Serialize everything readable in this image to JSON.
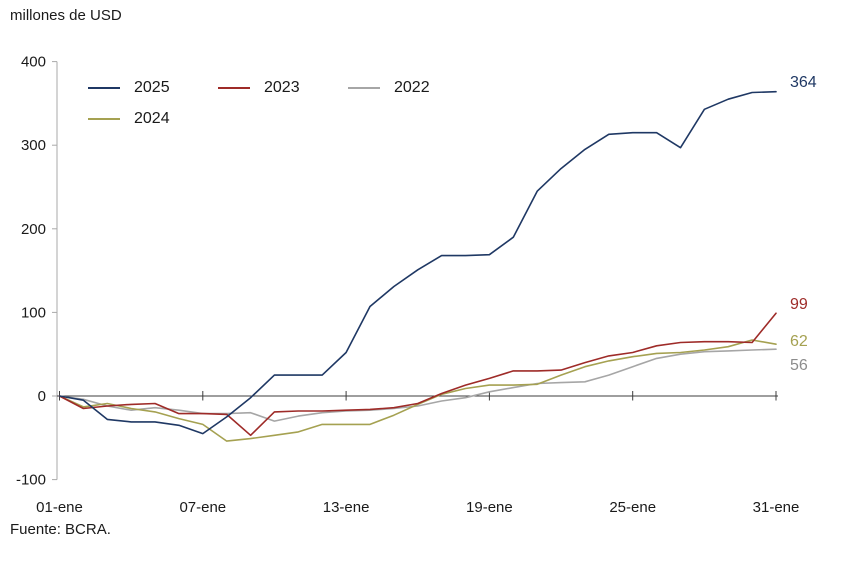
{
  "title": "millones de USD",
  "source": "Fuente: BCRA.",
  "chart_data": {
    "type": "line",
    "x_unit": "day of January",
    "x_range_days": [
      1,
      31
    ],
    "x_tick_days": [
      1,
      7,
      13,
      19,
      25,
      31
    ],
    "x_tick_labels": [
      "01-ene",
      "07-ene",
      "13-ene",
      "19-ene",
      "25-ene",
      "31-ene"
    ],
    "y_ticks": [
      400,
      300,
      200,
      100,
      0,
      -100
    ],
    "ylim": [
      -100,
      400
    ],
    "grid": "zero-line-only",
    "legend_position": "top-left-inside",
    "series": [
      {
        "name": "2025",
        "color": "#1F3864",
        "end_label": "364",
        "values": [
          0,
          -5,
          -28,
          -31,
          -31,
          -35,
          -45,
          -25,
          -2,
          25,
          25,
          25,
          52,
          107,
          131,
          151,
          168,
          168,
          169,
          190,
          245,
          272,
          295,
          313,
          315,
          315,
          297,
          343,
          355,
          363,
          364
        ]
      },
      {
        "name": "2023",
        "color": "#9E2B28",
        "end_label": "99",
        "values": [
          0,
          -15,
          -12,
          -10,
          -9,
          -21,
          -21,
          -22,
          -47,
          -19,
          -18,
          -18,
          -17,
          -16,
          -14,
          -9,
          3,
          13,
          21,
          30,
          30,
          31,
          40,
          48,
          52,
          60,
          64,
          65,
          65,
          64,
          99
        ]
      },
      {
        "name": "2022",
        "color": "#A6A6A6",
        "end_label": "56",
        "values": [
          0,
          -4,
          -12,
          -17,
          -14,
          -17,
          -21,
          -21,
          -20,
          -30,
          -24,
          -20,
          -18,
          -17,
          -15,
          -12,
          -6,
          -2,
          5,
          10,
          15,
          16,
          17,
          25,
          35,
          45,
          50,
          53,
          54,
          55,
          56
        ]
      },
      {
        "name": "2024",
        "color": "#A5A151",
        "end_label": "62",
        "values": [
          0,
          -13,
          -9,
          -15,
          -19,
          -27,
          -34,
          -54,
          -51,
          -47,
          -43,
          -34,
          -34,
          -34,
          -23,
          -10,
          2,
          9,
          13,
          13,
          14,
          25,
          35,
          42,
          47,
          51,
          52,
          55,
          59,
          67,
          62
        ]
      }
    ],
    "legend_order": [
      "2025",
      "2023",
      "2022",
      "2024"
    ],
    "draw_order": [
      "2022",
      "2024",
      "2023",
      "2025"
    ]
  }
}
